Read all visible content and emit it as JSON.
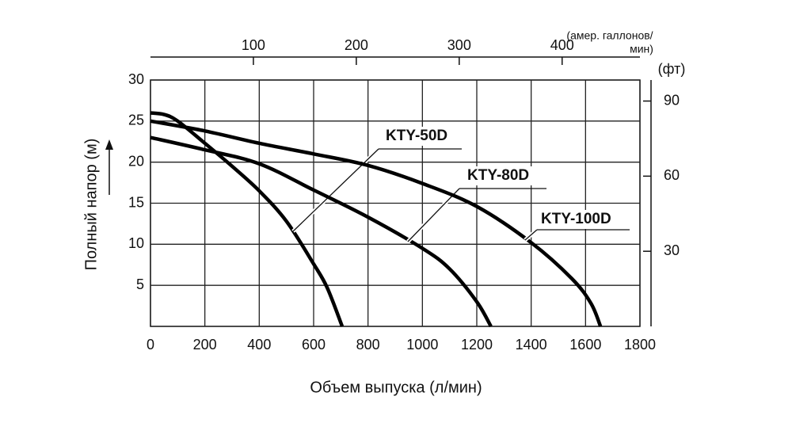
{
  "chart_data": {
    "type": "line",
    "x_label": "Объем выпуска (л/мин)",
    "y_label": "Полный напор (м)",
    "x2_label": [
      "(амер. галлонов/",
      "мин)"
    ],
    "y2_label": "(фт)",
    "xlim": [
      0,
      1800
    ],
    "xticks": [
      0,
      200,
      400,
      600,
      800,
      1000,
      1200,
      1400,
      1600,
      1800
    ],
    "ylim": [
      0,
      30
    ],
    "yticks": [
      5,
      10,
      15,
      20,
      25,
      30
    ],
    "x2lim": [
      0,
      475.6
    ],
    "x2ticks": [
      100,
      200,
      300,
      400
    ],
    "y2lim": [
      0,
      98.4
    ],
    "y2ticks": [
      30,
      60,
      90
    ],
    "grid": true,
    "series": [
      {
        "name": "KTY-50D",
        "color": "#000000",
        "x": [
          0,
          50,
          100,
          200,
          300,
          400,
          500,
          600,
          650,
          705
        ],
        "values": [
          26,
          25.8,
          25,
          22.3,
          19.5,
          16.5,
          12.8,
          7.6,
          4.7,
          0
        ]
      },
      {
        "name": "KTY-80D",
        "color": "#000000",
        "x": [
          0,
          200,
          400,
          600,
          800,
          1000,
          1100,
          1200,
          1252
        ],
        "values": [
          23,
          21.5,
          19.8,
          16.6,
          13.3,
          9.5,
          7,
          3,
          0
        ]
      },
      {
        "name": "KTY-100D",
        "color": "#000000",
        "x": [
          0,
          200,
          400,
          600,
          800,
          1000,
          1200,
          1400,
          1550,
          1620,
          1655
        ],
        "values": [
          25,
          23.8,
          22.3,
          21,
          19.6,
          17.4,
          14.6,
          10.2,
          5.8,
          2.8,
          0
        ]
      }
    ]
  }
}
